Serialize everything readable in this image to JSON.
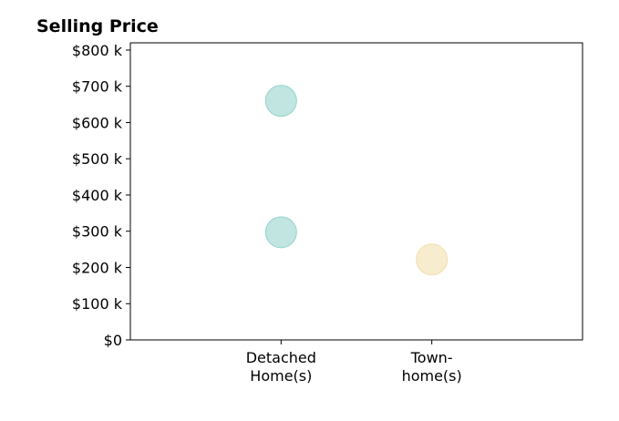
{
  "chart_data": {
    "type": "scatter",
    "title": "Selling Price",
    "xlabel": "",
    "ylabel": "",
    "categories": [
      [
        "Detached",
        "Home(s)"
      ],
      [
        "Town-",
        "home(s)"
      ]
    ],
    "xlim": [
      -1,
      2
    ],
    "ylim": [
      0,
      820000
    ],
    "yticks": [
      {
        "value": 0,
        "label": "$0"
      },
      {
        "value": 100000,
        "label": "$100 k"
      },
      {
        "value": 200000,
        "label": "$200 k"
      },
      {
        "value": 300000,
        "label": "$300 k"
      },
      {
        "value": 400000,
        "label": "$400 k"
      },
      {
        "value": 500000,
        "label": "$500 k"
      },
      {
        "value": 600000,
        "label": "$600 k"
      },
      {
        "value": 700000,
        "label": "$700 k"
      },
      {
        "value": 800000,
        "label": "$800 k"
      }
    ],
    "points": [
      {
        "category": 0,
        "y": 660000,
        "color": "#8ecfc9"
      },
      {
        "category": 0,
        "y": 297000,
        "color": "#8ecfc9"
      },
      {
        "category": 1,
        "y": 222000,
        "color": "#f3dca6"
      }
    ],
    "grid": false,
    "legend": "none"
  }
}
